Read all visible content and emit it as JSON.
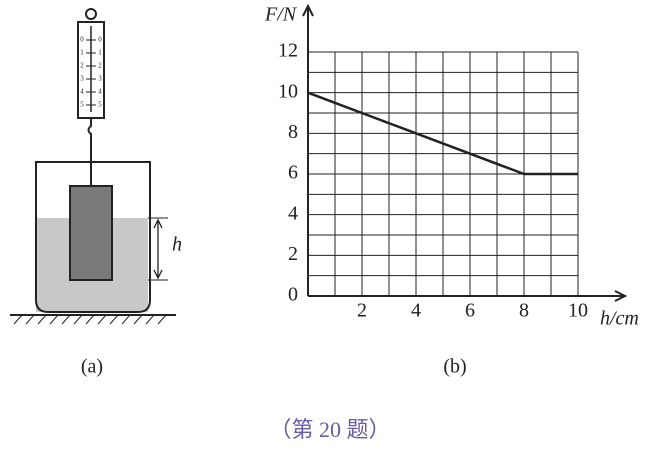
{
  "diagram": {
    "scale_left": [
      "0",
      "1",
      "2",
      "3",
      "4",
      "5"
    ],
    "scale_right": [
      "0",
      "1",
      "2",
      "3",
      "4",
      "5"
    ],
    "depth_label": "h",
    "caption": "(a)"
  },
  "chart_data": {
    "type": "line",
    "y_label": "F/N",
    "x_label": "h/cm",
    "caption": "(b)",
    "x": [
      0,
      8,
      10
    ],
    "values": [
      10,
      6,
      6
    ],
    "color": "#222222",
    "xlim": [
      0,
      10
    ],
    "ylim": [
      0,
      12
    ],
    "xticks": [
      2,
      4,
      6,
      8,
      10
    ],
    "yticks": [
      0,
      2,
      4,
      6,
      8,
      10,
      12
    ],
    "grid": true
  },
  "footer": "（第 20 题）"
}
